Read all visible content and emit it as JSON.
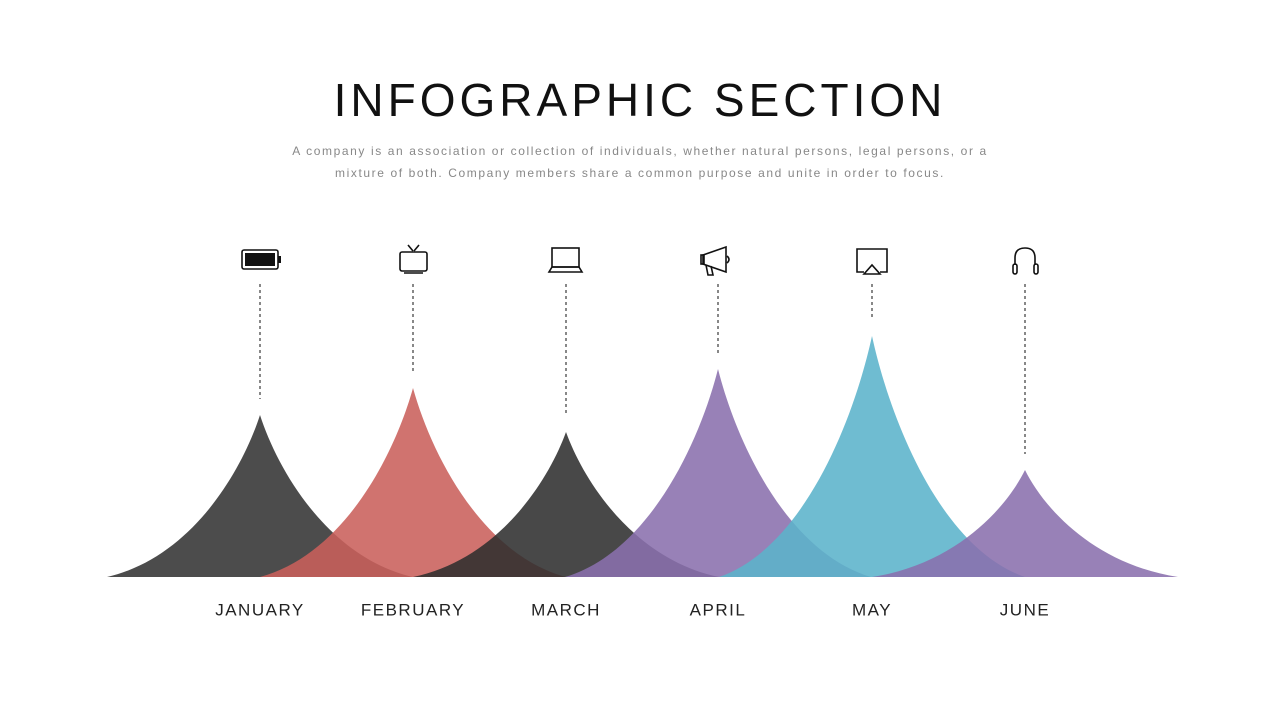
{
  "header": {
    "title": "INFOGRAPHIC SECTION",
    "subtitle": [
      "A company is an association or collection of individuals, whether natural persons, legal persons, or a",
      "mixture of both. Company members share a common purpose and unite in order to focus."
    ]
  },
  "items": [
    {
      "label": "JANUARY"
    },
    {
      "label": "FEBRUARY"
    },
    {
      "label": "MARCH"
    },
    {
      "label": "APRIL"
    },
    {
      "label": "MAY"
    },
    {
      "label": "JUNE"
    }
  ]
}
